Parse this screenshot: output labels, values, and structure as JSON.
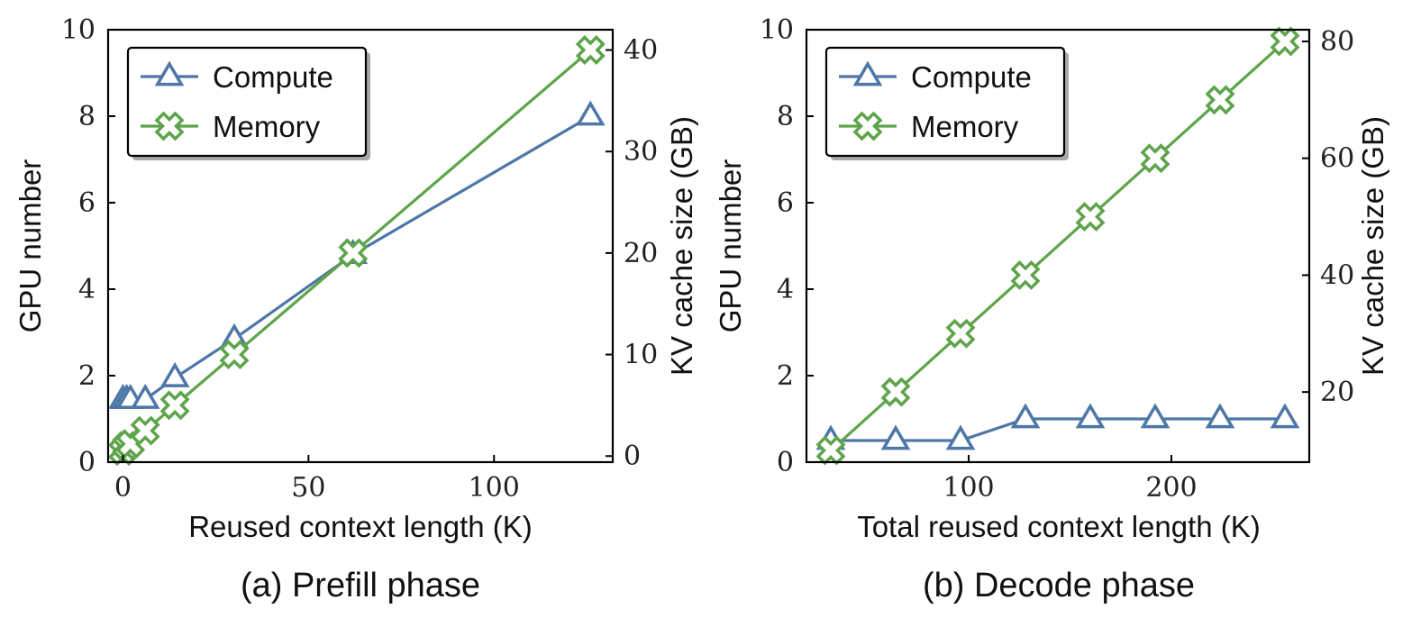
{
  "colors": {
    "compute": "#4e77a8",
    "memory": "#5ea44a"
  },
  "chart_data": [
    {
      "type": "line",
      "caption": "(a) Prefill phase",
      "xlabel": "Reused context length (K)",
      "ylabel": "GPU number",
      "y2label": "KV cache size (GB)",
      "xlim": [
        -4,
        132
      ],
      "ylim": [
        0,
        10
      ],
      "y2lim": [
        -0.6,
        42
      ],
      "xticks": [
        0,
        50,
        100
      ],
      "yticks": [
        0,
        2,
        4,
        6,
        8,
        10
      ],
      "y2ticks": [
        0,
        10,
        20,
        30,
        40
      ],
      "legend": {
        "position": "top-left",
        "entries": [
          "Compute",
          "Memory"
        ]
      },
      "series": [
        {
          "name": "Compute",
          "axis": "left",
          "marker": "triangle",
          "x": [
            0,
            1,
            2,
            6,
            14,
            30,
            62,
            126
          ],
          "y": [
            1.45,
            1.45,
            1.45,
            1.45,
            1.95,
            2.85,
            4.8,
            8.0
          ]
        },
        {
          "name": "Memory",
          "axis": "right",
          "marker": "cross",
          "x": [
            0,
            1,
            2,
            6,
            14,
            30,
            62,
            126
          ],
          "y": [
            0.5,
            1.0,
            1.2,
            2.5,
            5.0,
            10.0,
            20.0,
            40.0
          ]
        }
      ]
    },
    {
      "type": "line",
      "caption": "(b) Decode phase",
      "xlabel": "Total reused context length (K)",
      "ylabel": "GPU number",
      "y2label": "KV cache size (GB)",
      "xlim": [
        20,
        268
      ],
      "ylim": [
        0,
        10
      ],
      "y2lim": [
        8,
        82
      ],
      "xticks": [
        100,
        200
      ],
      "yticks": [
        0,
        2,
        4,
        6,
        8,
        10
      ],
      "y2ticks": [
        20,
        40,
        60,
        80
      ],
      "legend": {
        "position": "top-left",
        "entries": [
          "Compute",
          "Memory"
        ]
      },
      "series": [
        {
          "name": "Compute",
          "axis": "left",
          "marker": "triangle",
          "x": [
            32,
            64,
            96,
            128,
            160,
            192,
            224,
            256
          ],
          "y": [
            0.5,
            0.5,
            0.5,
            1.0,
            1.0,
            1.0,
            1.0,
            1.0
          ]
        },
        {
          "name": "Memory",
          "axis": "right",
          "marker": "cross",
          "x": [
            32,
            64,
            96,
            128,
            160,
            192,
            224,
            256
          ],
          "y": [
            10,
            20,
            30,
            40,
            50,
            60,
            70,
            80
          ]
        }
      ]
    }
  ]
}
